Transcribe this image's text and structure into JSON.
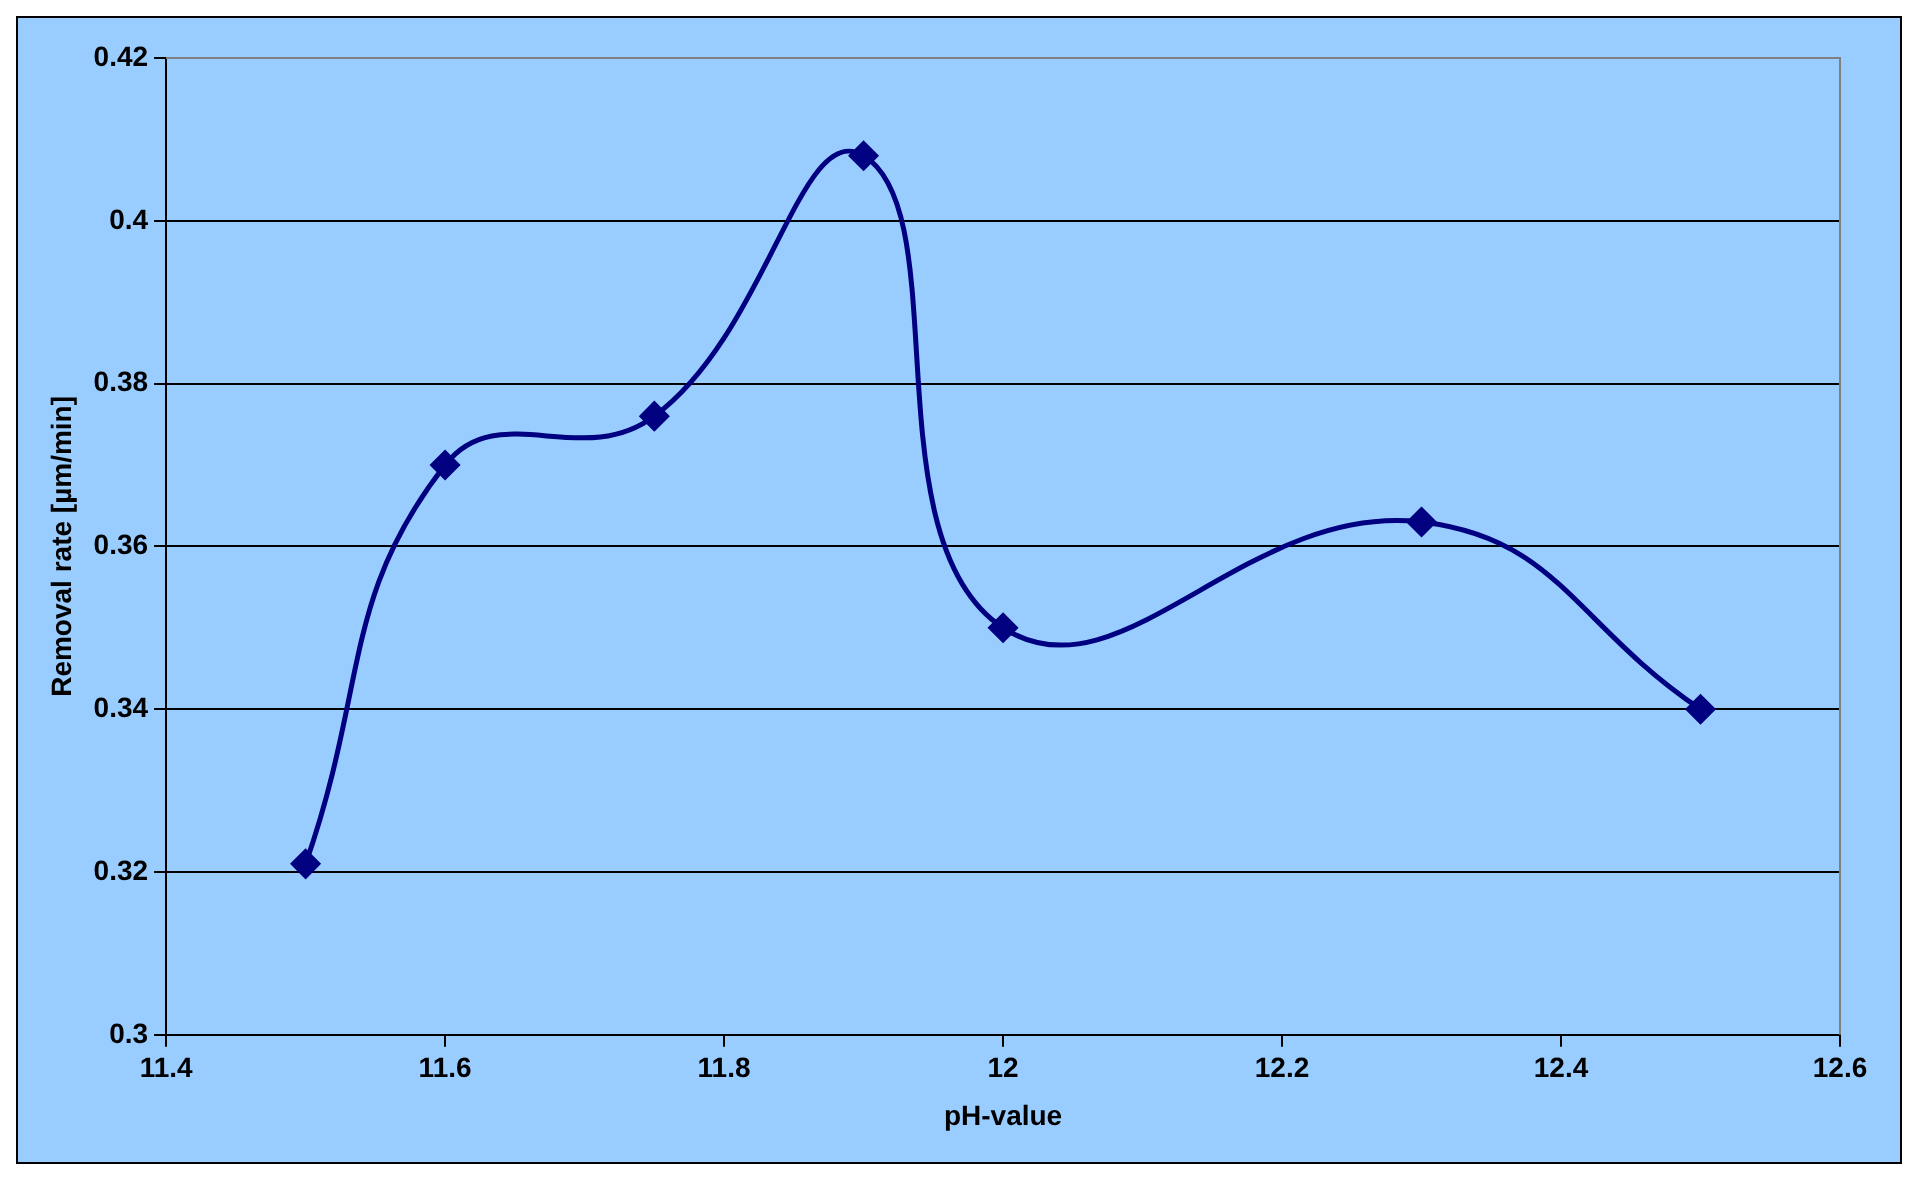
{
  "chart_data": {
    "type": "line",
    "xlabel": "pH-value",
    "ylabel": "Removal rate [µm/min]",
    "x": [
      11.5,
      11.6,
      11.75,
      11.9,
      12.0,
      12.3,
      12.5
    ],
    "series": [
      {
        "color": "#000080",
        "values": [
          0.321,
          0.37,
          0.376,
          0.408,
          0.35,
          0.363,
          0.34
        ]
      }
    ],
    "xlim": [
      11.4,
      12.6
    ],
    "xticks": [
      11.4,
      11.6,
      11.8,
      12,
      12.2,
      12.4,
      12.6
    ],
    "ylim": [
      0.3,
      0.42
    ],
    "yticks": [
      0.3,
      0.32,
      0.34,
      0.36,
      0.38,
      0.4,
      0.42
    ],
    "grid": "y",
    "legend": false,
    "marker": "diamond",
    "line_style": "solid"
  }
}
